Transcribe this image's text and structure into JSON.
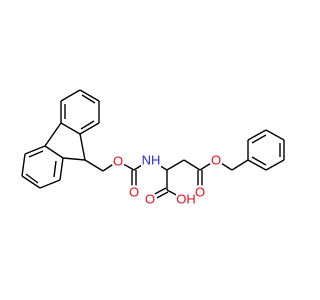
{
  "molecule": {
    "atoms": [
      {
        "label": "O"
      },
      {
        "label": "O"
      },
      {
        "label": "NH"
      },
      {
        "label": "O"
      },
      {
        "label": "O"
      },
      {
        "label": "O"
      },
      {
        "label": "OH"
      }
    ]
  }
}
